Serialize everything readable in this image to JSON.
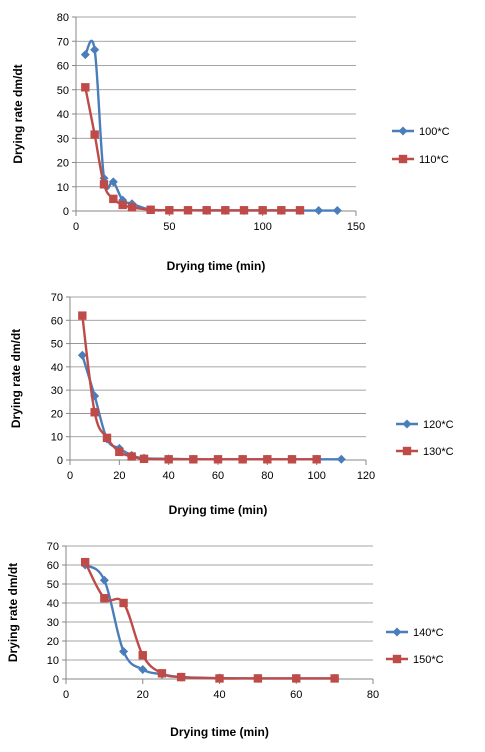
{
  "chart_data": [
    {
      "type": "line",
      "xlabel": "Drying time (min)",
      "ylabel": "Drying rate dm/dt",
      "xlim": [
        0,
        150
      ],
      "ylim": [
        0,
        80
      ],
      "xticks": [
        0,
        50,
        100,
        150
      ],
      "yticks": [
        0,
        10,
        20,
        30,
        40,
        50,
        60,
        70,
        80
      ],
      "grid": "horizontal",
      "legend_position": "right",
      "series": [
        {
          "name": "100*C",
          "color": "#4a7ebb",
          "marker": "diamond",
          "x": [
            5,
            10,
            15,
            20,
            25,
            30,
            40,
            50,
            60,
            70,
            80,
            90,
            100,
            110,
            120,
            130,
            140
          ],
          "y": [
            64.5,
            66.5,
            13.5,
            12,
            4.5,
            3,
            0.5,
            0.3,
            0.3,
            0.2,
            0.2,
            0.2,
            0.2,
            0.2,
            0.2,
            0.2,
            0.2
          ]
        },
        {
          "name": "110*C",
          "color": "#be4b48",
          "marker": "square",
          "x": [
            5,
            10,
            15,
            20,
            25,
            30,
            40,
            50,
            60,
            70,
            80,
            90,
            100,
            110,
            120
          ],
          "y": [
            51,
            31.5,
            11,
            5,
            2.5,
            1.5,
            0.5,
            0.3,
            0.3,
            0.3,
            0.3,
            0.3,
            0.3,
            0.3,
            0.3
          ]
        }
      ]
    },
    {
      "type": "line",
      "xlabel": "Drying time (min)",
      "ylabel": "Drying rate dm/dt",
      "xlim": [
        0,
        120
      ],
      "ylim": [
        0,
        70
      ],
      "xticks": [
        0,
        20,
        40,
        60,
        80,
        100,
        120
      ],
      "yticks": [
        0,
        10,
        20,
        30,
        40,
        50,
        60,
        70
      ],
      "grid": "horizontal",
      "legend_position": "right",
      "series": [
        {
          "name": "120*C",
          "color": "#4a7ebb",
          "marker": "diamond",
          "x": [
            5,
            10,
            15,
            20,
            25,
            30,
            40,
            50,
            60,
            70,
            80,
            90,
            100,
            110
          ],
          "y": [
            45,
            27.5,
            9,
            5,
            2,
            0.8,
            0.5,
            0.3,
            0.3,
            0.3,
            0.3,
            0.3,
            0.3,
            0.3
          ]
        },
        {
          "name": "130*C",
          "color": "#be4b48",
          "marker": "square",
          "x": [
            5,
            10,
            15,
            20,
            25,
            30,
            40,
            50,
            60,
            70,
            80,
            90,
            100
          ],
          "y": [
            62,
            20.5,
            9.5,
            3.5,
            1.5,
            0.5,
            0.3,
            0.3,
            0.3,
            0.3,
            0.3,
            0.3,
            0.3
          ]
        }
      ]
    },
    {
      "type": "line",
      "xlabel": "Drying time (min)",
      "ylabel": "Drying rate dm/dt",
      "xlim": [
        0,
        80
      ],
      "ylim": [
        0,
        70
      ],
      "xticks": [
        0,
        20,
        40,
        60,
        80
      ],
      "yticks": [
        0,
        10,
        20,
        30,
        40,
        50,
        60,
        70
      ],
      "grid": "horizontal",
      "legend_position": "right",
      "series": [
        {
          "name": "140*C",
          "color": "#4a7ebb",
          "marker": "diamond",
          "x": [
            5,
            10,
            15,
            20,
            25,
            30,
            40,
            50,
            60,
            70
          ],
          "y": [
            60,
            52,
            14.5,
            5,
            2.5,
            1,
            0.5,
            0.3,
            0.3,
            0.3
          ]
        },
        {
          "name": "150*C",
          "color": "#be4b48",
          "marker": "square",
          "x": [
            5,
            10,
            15,
            20,
            25,
            30,
            40,
            50,
            60,
            70
          ],
          "y": [
            61.5,
            42.5,
            40,
            12.5,
            3,
            1,
            0.3,
            0.3,
            0.3,
            0.3
          ]
        }
      ]
    }
  ]
}
